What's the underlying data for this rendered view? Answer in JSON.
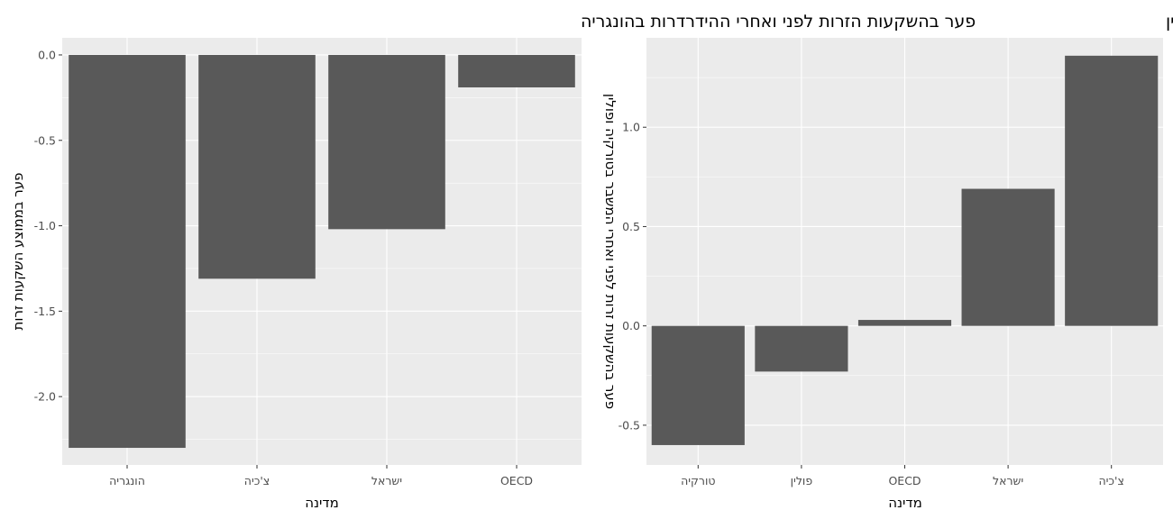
{
  "chart_data": [
    {
      "type": "bar",
      "title": "פער בהשקעות הזרות לפני ואחרי ההידרדרות בהונגריה",
      "xlabel": "מדינה",
      "ylabel": "פער בממוצע השקעות זרות",
      "categories": [
        "הונגריה",
        "צ'כיה",
        "ישראל",
        "OECD"
      ],
      "values": [
        -2.3,
        -1.31,
        -1.02,
        -0.19
      ],
      "ylim": [
        -2.4,
        0.1
      ],
      "yticks": [
        0.0,
        -0.5,
        -1.0,
        -1.5,
        -2.0
      ],
      "ytick_labels": [
        "0.0",
        "-0.5",
        "-1.0",
        "-1.5",
        "-2.0"
      ],
      "grid": true,
      "legend": "none"
    },
    {
      "type": "bar",
      "title": "פער בהשקעות הזרות לפני ואחרי ההידרדרות בטורקיה ובפולין",
      "xlabel": "מדינה",
      "ylabel": "פער בהשקעות זרות לפני ואחרי המשבר בטורקיה ופולין",
      "categories": [
        "טורקיה",
        "פולין",
        "OECD",
        "ישראל",
        "צ'כיה"
      ],
      "values": [
        -0.6,
        -0.23,
        0.03,
        0.69,
        1.36
      ],
      "ylim": [
        -0.7,
        1.45
      ],
      "yticks": [
        -0.5,
        0.0,
        0.5,
        1.0
      ],
      "ytick_labels": [
        "-0.5",
        "0.0",
        "0.5",
        "1.0"
      ],
      "grid": true,
      "legend": "none"
    }
  ]
}
